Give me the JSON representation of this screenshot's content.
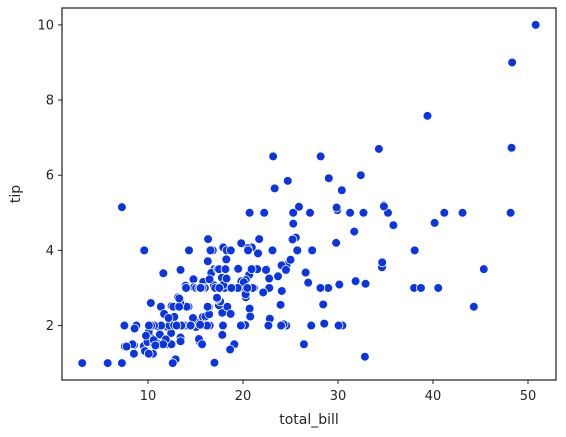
{
  "chart_data": {
    "type": "scatter",
    "title": "",
    "xlabel": "total_bill",
    "ylabel": "tip",
    "xlim": [
      0.94,
      52.95
    ],
    "ylim": [
      0.55,
      10.45
    ],
    "xticks": [
      10,
      20,
      30,
      40,
      50
    ],
    "yticks": [
      2,
      4,
      6,
      8,
      10
    ],
    "grid": false,
    "legend": "none",
    "point_color": "#0a35e6",
    "series": [
      {
        "x": [
          16.99,
          10.34,
          21.01,
          23.68,
          24.59,
          25.29,
          8.77,
          26.88,
          15.04,
          14.78,
          10.27,
          35.26,
          15.42,
          18.43,
          14.83,
          21.58,
          10.33,
          16.29,
          16.97,
          20.65,
          17.92,
          20.29,
          15.77,
          39.42,
          19.82,
          17.81,
          13.37,
          12.69,
          21.7,
          19.65,
          9.55,
          18.35,
          15.06,
          20.69,
          17.78,
          24.06,
          16.31,
          16.93,
          18.69,
          31.27,
          16.04,
          17.46,
          13.94,
          9.68,
          30.4,
          18.29,
          22.23,
          32.4,
          28.55,
          18.04,
          12.54,
          10.29,
          34.81,
          9.94,
          25.56,
          19.49,
          38.01,
          26.41,
          11.24,
          48.27,
          20.29,
          13.81,
          11.02,
          18.29,
          17.59,
          20.08,
          16.45,
          3.07,
          20.23,
          15.01,
          12.02,
          17.07,
          26.86,
          25.28,
          14.73,
          10.51,
          17.92,
          27.2,
          22.76,
          17.29,
          19.44,
          16.66,
          10.07,
          32.68,
          15.98,
          34.83,
          13.03,
          18.28,
          24.71,
          21.16,
          28.97,
          22.49,
          5.75,
          16.32,
          22.75,
          40.17,
          27.28,
          12.03,
          21.01,
          12.46,
          11.35,
          15.38,
          44.3,
          22.42,
          20.92,
          15.36,
          20.49,
          25.21,
          18.24,
          14.31,
          14.0,
          7.25,
          38.07,
          23.95,
          25.71,
          17.31,
          29.93,
          10.65,
          12.43,
          24.08,
          11.69,
          13.42,
          14.26,
          15.95,
          12.48,
          29.8,
          8.52,
          14.52,
          11.38,
          22.82,
          19.08,
          20.27,
          11.17,
          12.26,
          18.26,
          8.51,
          10.33,
          14.15,
          16.0,
          13.16,
          17.47,
          34.3,
          41.19,
          27.05,
          16.43,
          8.35,
          18.64,
          11.87,
          9.78,
          7.51,
          14.07,
          13.13,
          17.26,
          24.55,
          19.77,
          29.85,
          48.17,
          25.0,
          13.39,
          16.49,
          21.5,
          12.66,
          16.21,
          13.81,
          17.51,
          24.52,
          20.76,
          31.71,
          10.59,
          10.63,
          50.81,
          15.81,
          7.25,
          31.85,
          16.82,
          32.9,
          17.89,
          14.48,
          9.6,
          34.63,
          34.65,
          23.33,
          45.35,
          23.17,
          40.55,
          20.69,
          20.9,
          30.46,
          18.15,
          23.1,
          15.69,
          19.81,
          28.44,
          15.48,
          16.58,
          7.56,
          10.34,
          43.11,
          13.0,
          13.51,
          18.71,
          12.74,
          13.0,
          16.4,
          20.53,
          16.47,
          26.59,
          38.73,
          24.27,
          12.76,
          30.06,
          25.89,
          48.33,
          13.27,
          28.17,
          12.9,
          28.15,
          11.59,
          7.74,
          30.14,
          12.16,
          13.42,
          8.58,
          15.98,
          13.42,
          16.27,
          10.09,
          20.45,
          13.28,
          22.12,
          24.01,
          15.69,
          11.61,
          10.77,
          15.53,
          10.07,
          12.6,
          32.83,
          35.83,
          29.03,
          27.18,
          22.67,
          17.82,
          18.78
        ],
        "y": [
          1.01,
          1.66,
          3.5,
          3.31,
          3.61,
          4.71,
          2.0,
          3.12,
          1.96,
          3.23,
          1.71,
          5.0,
          1.57,
          3.0,
          3.02,
          3.92,
          1.67,
          3.71,
          3.5,
          3.35,
          4.08,
          2.75,
          2.23,
          7.58,
          3.18,
          2.34,
          2.0,
          2.0,
          4.3,
          3.0,
          1.45,
          2.5,
          3.0,
          2.45,
          3.27,
          3.6,
          2.0,
          3.07,
          2.31,
          5.0,
          2.24,
          2.54,
          3.06,
          1.32,
          5.6,
          3.0,
          5.0,
          6.0,
          2.05,
          3.0,
          2.5,
          2.6,
          5.2,
          1.56,
          4.34,
          3.51,
          3.0,
          1.5,
          1.76,
          6.73,
          3.21,
          2.0,
          1.98,
          3.76,
          2.64,
          3.15,
          2.47,
          1.0,
          2.01,
          2.09,
          1.97,
          3.0,
          3.14,
          5.0,
          2.2,
          1.25,
          3.08,
          4.0,
          3.0,
          2.71,
          3.0,
          3.4,
          1.83,
          5.0,
          2.03,
          5.17,
          2.0,
          4.0,
          5.85,
          3.0,
          3.0,
          3.5,
          1.0,
          4.3,
          3.25,
          4.73,
          4.0,
          1.5,
          3.0,
          1.5,
          2.5,
          3.0,
          2.5,
          3.48,
          4.08,
          1.64,
          4.06,
          4.29,
          3.76,
          4.0,
          3.0,
          1.0,
          4.0,
          2.55,
          4.0,
          3.5,
          5.07,
          1.5,
          1.8,
          2.92,
          2.31,
          1.68,
          2.5,
          2.0,
          2.52,
          4.2,
          1.48,
          2.0,
          2.0,
          2.18,
          1.5,
          2.83,
          1.5,
          2.0,
          3.25,
          1.25,
          2.0,
          2.0,
          2.0,
          2.75,
          3.5,
          6.7,
          5.0,
          5.0,
          2.3,
          1.5,
          1.36,
          1.63,
          1.73,
          2.0,
          2.5,
          2.0,
          2.74,
          2.0,
          2.0,
          5.14,
          5.0,
          3.75,
          2.61,
          2.0,
          3.5,
          2.5,
          2.0,
          2.0,
          3.0,
          3.48,
          2.24,
          4.5,
          1.61,
          2.0,
          10.0,
          3.16,
          5.15,
          3.18,
          4.0,
          3.11,
          2.0,
          2.0,
          4.0,
          3.55,
          3.68,
          5.65,
          3.5,
          6.5,
          3.0,
          5.0,
          3.5,
          2.0,
          3.5,
          4.0,
          1.5,
          4.19,
          2.56,
          2.02,
          4.0,
          1.44,
          2.0,
          5.0,
          2.0,
          2.0,
          4.0,
          2.01,
          2.0,
          2.5,
          4.0,
          3.23,
          3.41,
          3.0,
          2.03,
          2.23,
          2.0,
          5.16,
          9.0,
          2.5,
          6.5,
          1.1,
          3.0,
          1.5,
          1.44,
          3.09,
          2.2,
          3.48,
          1.92,
          3.0,
          1.58,
          2.5,
          2.0,
          3.0,
          2.72,
          2.88,
          2.0,
          3.0,
          3.39,
          1.47,
          3.0,
          1.25,
          1.0,
          1.17,
          4.67,
          5.92,
          2.0,
          2.0,
          1.75,
          3.0
        ]
      }
    ]
  }
}
